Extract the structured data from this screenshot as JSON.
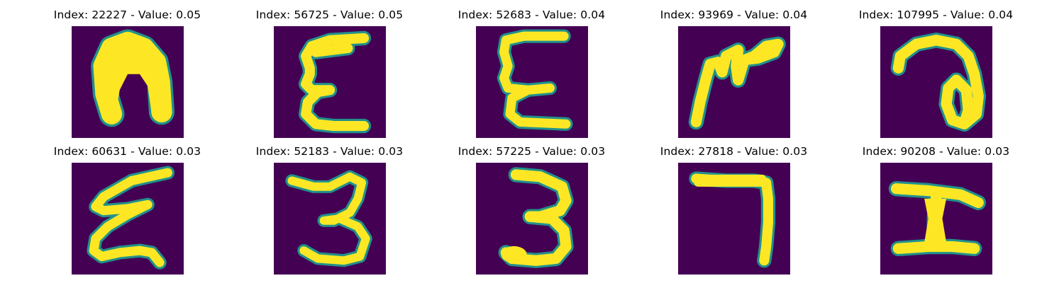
{
  "colors": {
    "background": "#440154",
    "ink": "#fde725",
    "edge": "#21918c",
    "edge_dark": "#3b528b"
  },
  "panels": [
    {
      "title": "Index: 22227 - Value: 0.05",
      "glyph": "blob-n"
    },
    {
      "title": "Index: 56725 - Value: 0.05",
      "glyph": "epsilon-a"
    },
    {
      "title": "Index: 52683 - Value: 0.04",
      "glyph": "epsilon-b"
    },
    {
      "title": "Index: 93969 - Value: 0.04",
      "glyph": "scribble"
    },
    {
      "title": "Index: 107995 - Value: 0.04",
      "glyph": "loop-a"
    },
    {
      "title": "Index: 60631 - Value: 0.03",
      "glyph": "zigzag-e"
    },
    {
      "title": "Index: 52183 - Value: 0.03",
      "glyph": "three-a"
    },
    {
      "title": "Index: 57225 - Value: 0.03",
      "glyph": "three-b"
    },
    {
      "title": "Index: 27818 - Value: 0.03",
      "glyph": "seven"
    },
    {
      "title": "Index: 90208 - Value: 0.03",
      "glyph": "i-beam"
    }
  ]
}
